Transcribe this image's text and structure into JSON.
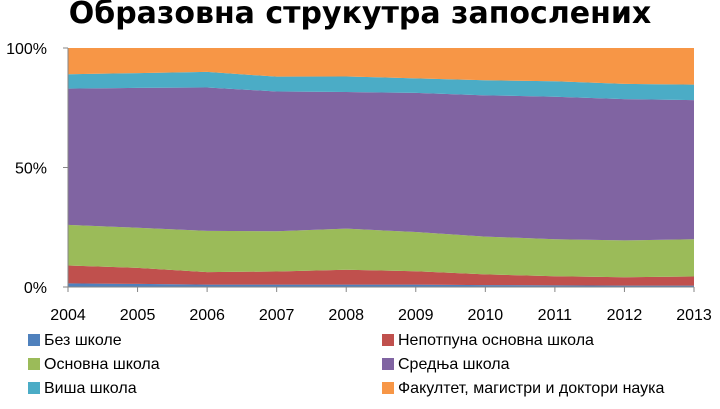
{
  "chart_data": {
    "type": "area",
    "stacked": true,
    "percent": true,
    "title": "Образовна струкутра запослених",
    "xlabel": "",
    "ylabel": "",
    "x": [
      "2004",
      "2005",
      "2006",
      "2007",
      "2008",
      "2009",
      "2010",
      "2011",
      "2012",
      "2013"
    ],
    "ylim": [
      0,
      100
    ],
    "yticks": [
      "0%",
      "50%",
      "100%"
    ],
    "yticks_values": [
      0,
      50,
      100
    ],
    "grid": false,
    "legend_position": "bottom",
    "series": [
      {
        "name": "Без школе",
        "color": "#4F81BD",
        "values": [
          1.5,
          1.3,
          1.0,
          1.0,
          1.0,
          1.0,
          0.8,
          0.7,
          0.6,
          0.6
        ]
      },
      {
        "name": "Непотпуна основна школа",
        "color": "#C0504D",
        "values": [
          7.5,
          6.7,
          5.2,
          5.5,
          6.2,
          5.6,
          4.5,
          3.8,
          3.5,
          3.8
        ]
      },
      {
        "name": "Основна школа",
        "color": "#9BBB59",
        "values": [
          17.0,
          16.8,
          17.3,
          16.8,
          17.2,
          16.4,
          15.8,
          15.5,
          15.4,
          15.6
        ]
      },
      {
        "name": "Средња школа",
        "color": "#8064A2",
        "values": [
          57.0,
          58.5,
          60.0,
          58.5,
          57.2,
          58.2,
          59.1,
          59.6,
          59.1,
          58.2
        ]
      },
      {
        "name": "Виша школа",
        "color": "#4BACC6",
        "values": [
          6.0,
          6.2,
          6.5,
          6.2,
          6.5,
          6.1,
          6.3,
          6.5,
          6.4,
          6.5
        ]
      },
      {
        "name": "Факултет, магистри и доктори наука",
        "color": "#F79646",
        "values": [
          11.0,
          10.5,
          10.0,
          12.0,
          11.9,
          12.7,
          13.5,
          13.9,
          15.0,
          15.3
        ]
      }
    ]
  }
}
